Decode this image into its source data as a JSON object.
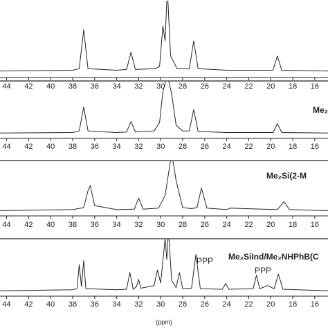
{
  "chart_data": [
    {
      "type": "line",
      "xlim": [
        44.6,
        14.8
      ],
      "xticks": [
        44,
        42,
        40,
        38,
        36,
        34,
        32,
        30,
        28,
        26,
        24,
        22,
        20,
        18,
        16
      ],
      "ylim": [
        -5,
        100
      ],
      "color": "#222",
      "x": [
        44.6,
        38,
        37.4,
        37,
        36.6,
        34,
        33.1,
        32.7,
        32.3,
        30.5,
        30.1,
        29.8,
        29.6,
        29.4,
        29.1,
        28.5,
        27.4,
        27,
        26.6,
        24,
        19.8,
        19.4,
        19,
        14.8
      ],
      "values": [
        0,
        1,
        3,
        55,
        3,
        1,
        2,
        25,
        2,
        3,
        6,
        60,
        40,
        110,
        20,
        3,
        3,
        40,
        3,
        1,
        1,
        20,
        1,
        0
      ]
    },
    {
      "type": "line",
      "title": "Me₂",
      "xlim": [
        44.6,
        14.8
      ],
      "xticks": [
        44,
        42,
        40,
        38,
        36,
        34,
        32,
        30,
        28,
        26,
        24,
        22,
        20,
        18,
        16
      ],
      "ylim": [
        -5,
        100
      ],
      "color": "#222",
      "x": [
        44.6,
        38,
        37.4,
        37,
        36.6,
        34,
        33.1,
        32.7,
        32.3,
        30.6,
        30.1,
        29.8,
        29.4,
        29.0,
        28.6,
        28,
        27.4,
        27,
        26.6,
        24,
        19.8,
        19.4,
        19,
        14.8
      ],
      "values": [
        0,
        1,
        4,
        50,
        4,
        1,
        2,
        22,
        2,
        4,
        20,
        80,
        110,
        75,
        15,
        4,
        4,
        45,
        3,
        1,
        1,
        18,
        1,
        0
      ]
    },
    {
      "type": "line",
      "title": "Me₂Si(2-M",
      "xlim": [
        44.6,
        14.8
      ],
      "xticks": [
        44,
        42,
        40,
        38,
        36,
        34,
        32,
        30,
        28,
        26,
        24,
        22,
        20,
        18,
        16
      ],
      "ylim": [
        -5,
        100
      ],
      "color": "#222",
      "x": [
        44.6,
        38,
        37.0,
        36.6,
        36.4,
        36.0,
        34,
        32.4,
        32.0,
        31.6,
        30.2,
        29.6,
        29.0,
        28.6,
        28.0,
        27.2,
        26.7,
        26.3,
        25.8,
        24,
        23.7,
        19.4,
        18.8,
        18.3,
        14.8
      ],
      "values": [
        0,
        2,
        6,
        40,
        50,
        10,
        2,
        3,
        25,
        3,
        5,
        30,
        115,
        60,
        6,
        4,
        6,
        45,
        5,
        2,
        5,
        2,
        18,
        2,
        0
      ]
    },
    {
      "type": "line",
      "title": "Me₂SiInd/Me₂NHPhB(C",
      "annotations": [
        "PPP",
        "PPP"
      ],
      "xlabel": "(ppm)",
      "xlim": [
        44.6,
        14.8
      ],
      "xticks": [
        44,
        42,
        40,
        38,
        36,
        34,
        32,
        30,
        28,
        26,
        24,
        22,
        20,
        18,
        16
      ],
      "ylim": [
        -5,
        100
      ],
      "color": "#222",
      "x": [
        44.6,
        38,
        37.6,
        37.4,
        37.2,
        37.0,
        36.8,
        34,
        33.1,
        32.8,
        32.5,
        32.2,
        32.0,
        31.8,
        30.6,
        30.3,
        30.0,
        29.6,
        29.45,
        29.3,
        29.0,
        28.6,
        28.3,
        28.0,
        27.2,
        26.8,
        26.4,
        24.4,
        24.1,
        23.8,
        21.6,
        21.3,
        21.0,
        20.3,
        19.7,
        19.3,
        18.9,
        14.8
      ],
      "values": [
        0,
        2,
        4,
        50,
        8,
        58,
        4,
        2,
        3,
        35,
        3,
        8,
        22,
        5,
        10,
        40,
        15,
        100,
        60,
        115,
        20,
        6,
        35,
        4,
        5,
        70,
        4,
        3,
        14,
        3,
        4,
        30,
        4,
        10,
        4,
        32,
        3,
        0
      ]
    }
  ]
}
